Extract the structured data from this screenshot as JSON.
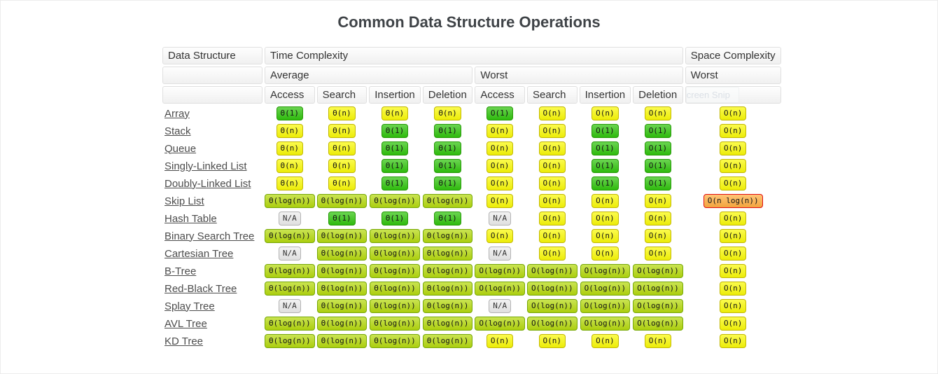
{
  "page": {
    "title": "Common Data Structure Operations"
  },
  "colors": {
    "excellent_bg": "#31c40e",
    "excellent_border": "#259a06",
    "good_bg": "#b5d90f",
    "good_border": "#76a805",
    "fair_bg": "#f9f909",
    "fair_border": "#c2b800",
    "bad_bg": "#ffad41",
    "bad_border": "#e00d0d",
    "na_bg": "#ececec",
    "na_border": "#b3b3b3"
  },
  "table": {
    "headers": {
      "data_structure": "Data Structure",
      "time_complexity": "Time Complexity",
      "space_complexity": "Space Complexity",
      "average": "Average",
      "worst_time": "Worst",
      "worst_space": "Worst",
      "ops": [
        "Access",
        "Search",
        "Insertion",
        "Deletion",
        "Access",
        "Search",
        "Insertion",
        "Deletion"
      ],
      "ghost": "creen Snip"
    },
    "rows": [
      {
        "name": "Array",
        "avg": [
          [
            "Θ(1)",
            "excellent"
          ],
          [
            "Θ(n)",
            "fair"
          ],
          [
            "Θ(n)",
            "fair"
          ],
          [
            "Θ(n)",
            "fair"
          ]
        ],
        "worst": [
          [
            "O(1)",
            "excellent"
          ],
          [
            "O(n)",
            "fair"
          ],
          [
            "O(n)",
            "fair"
          ],
          [
            "O(n)",
            "fair"
          ]
        ],
        "space": [
          "O(n)",
          "fair"
        ]
      },
      {
        "name": "Stack",
        "avg": [
          [
            "Θ(n)",
            "fair"
          ],
          [
            "Θ(n)",
            "fair"
          ],
          [
            "Θ(1)",
            "excellent"
          ],
          [
            "Θ(1)",
            "excellent"
          ]
        ],
        "worst": [
          [
            "O(n)",
            "fair"
          ],
          [
            "O(n)",
            "fair"
          ],
          [
            "O(1)",
            "excellent"
          ],
          [
            "O(1)",
            "excellent"
          ]
        ],
        "space": [
          "O(n)",
          "fair"
        ]
      },
      {
        "name": "Queue",
        "avg": [
          [
            "Θ(n)",
            "fair"
          ],
          [
            "Θ(n)",
            "fair"
          ],
          [
            "Θ(1)",
            "excellent"
          ],
          [
            "Θ(1)",
            "excellent"
          ]
        ],
        "worst": [
          [
            "O(n)",
            "fair"
          ],
          [
            "O(n)",
            "fair"
          ],
          [
            "O(1)",
            "excellent"
          ],
          [
            "O(1)",
            "excellent"
          ]
        ],
        "space": [
          "O(n)",
          "fair"
        ]
      },
      {
        "name": "Singly-Linked List",
        "avg": [
          [
            "Θ(n)",
            "fair"
          ],
          [
            "Θ(n)",
            "fair"
          ],
          [
            "Θ(1)",
            "excellent"
          ],
          [
            "Θ(1)",
            "excellent"
          ]
        ],
        "worst": [
          [
            "O(n)",
            "fair"
          ],
          [
            "O(n)",
            "fair"
          ],
          [
            "O(1)",
            "excellent"
          ],
          [
            "O(1)",
            "excellent"
          ]
        ],
        "space": [
          "O(n)",
          "fair"
        ]
      },
      {
        "name": "Doubly-Linked List",
        "avg": [
          [
            "Θ(n)",
            "fair"
          ],
          [
            "Θ(n)",
            "fair"
          ],
          [
            "Θ(1)",
            "excellent"
          ],
          [
            "Θ(1)",
            "excellent"
          ]
        ],
        "worst": [
          [
            "O(n)",
            "fair"
          ],
          [
            "O(n)",
            "fair"
          ],
          [
            "O(1)",
            "excellent"
          ],
          [
            "O(1)",
            "excellent"
          ]
        ],
        "space": [
          "O(n)",
          "fair"
        ]
      },
      {
        "name": "Skip List",
        "avg": [
          [
            "Θ(log(n))",
            "good"
          ],
          [
            "Θ(log(n))",
            "good"
          ],
          [
            "Θ(log(n))",
            "good"
          ],
          [
            "Θ(log(n))",
            "good"
          ]
        ],
        "worst": [
          [
            "O(n)",
            "fair"
          ],
          [
            "O(n)",
            "fair"
          ],
          [
            "O(n)",
            "fair"
          ],
          [
            "O(n)",
            "fair"
          ]
        ],
        "space": [
          "O(n log(n))",
          "bad"
        ]
      },
      {
        "name": "Hash Table",
        "avg": [
          [
            "N/A",
            "na"
          ],
          [
            "Θ(1)",
            "excellent"
          ],
          [
            "Θ(1)",
            "excellent"
          ],
          [
            "Θ(1)",
            "excellent"
          ]
        ],
        "worst": [
          [
            "N/A",
            "na"
          ],
          [
            "O(n)",
            "fair"
          ],
          [
            "O(n)",
            "fair"
          ],
          [
            "O(n)",
            "fair"
          ]
        ],
        "space": [
          "O(n)",
          "fair"
        ]
      },
      {
        "name": "Binary Search Tree",
        "avg": [
          [
            "Θ(log(n))",
            "good"
          ],
          [
            "Θ(log(n))",
            "good"
          ],
          [
            "Θ(log(n))",
            "good"
          ],
          [
            "Θ(log(n))",
            "good"
          ]
        ],
        "worst": [
          [
            "O(n)",
            "fair"
          ],
          [
            "O(n)",
            "fair"
          ],
          [
            "O(n)",
            "fair"
          ],
          [
            "O(n)",
            "fair"
          ]
        ],
        "space": [
          "O(n)",
          "fair"
        ]
      },
      {
        "name": "Cartesian Tree",
        "avg": [
          [
            "N/A",
            "na"
          ],
          [
            "Θ(log(n))",
            "good"
          ],
          [
            "Θ(log(n))",
            "good"
          ],
          [
            "Θ(log(n))",
            "good"
          ]
        ],
        "worst": [
          [
            "N/A",
            "na"
          ],
          [
            "O(n)",
            "fair"
          ],
          [
            "O(n)",
            "fair"
          ],
          [
            "O(n)",
            "fair"
          ]
        ],
        "space": [
          "O(n)",
          "fair"
        ]
      },
      {
        "name": "B-Tree",
        "avg": [
          [
            "Θ(log(n))",
            "good"
          ],
          [
            "Θ(log(n))",
            "good"
          ],
          [
            "Θ(log(n))",
            "good"
          ],
          [
            "Θ(log(n))",
            "good"
          ]
        ],
        "worst": [
          [
            "O(log(n))",
            "good"
          ],
          [
            "O(log(n))",
            "good"
          ],
          [
            "O(log(n))",
            "good"
          ],
          [
            "O(log(n))",
            "good"
          ]
        ],
        "space": [
          "O(n)",
          "fair"
        ]
      },
      {
        "name": "Red-Black Tree",
        "avg": [
          [
            "Θ(log(n))",
            "good"
          ],
          [
            "Θ(log(n))",
            "good"
          ],
          [
            "Θ(log(n))",
            "good"
          ],
          [
            "Θ(log(n))",
            "good"
          ]
        ],
        "worst": [
          [
            "O(log(n))",
            "good"
          ],
          [
            "O(log(n))",
            "good"
          ],
          [
            "O(log(n))",
            "good"
          ],
          [
            "O(log(n))",
            "good"
          ]
        ],
        "space": [
          "O(n)",
          "fair"
        ]
      },
      {
        "name": "Splay Tree",
        "avg": [
          [
            "N/A",
            "na"
          ],
          [
            "Θ(log(n))",
            "good"
          ],
          [
            "Θ(log(n))",
            "good"
          ],
          [
            "Θ(log(n))",
            "good"
          ]
        ],
        "worst": [
          [
            "N/A",
            "na"
          ],
          [
            "O(log(n))",
            "good"
          ],
          [
            "O(log(n))",
            "good"
          ],
          [
            "O(log(n))",
            "good"
          ]
        ],
        "space": [
          "O(n)",
          "fair"
        ]
      },
      {
        "name": "AVL Tree",
        "avg": [
          [
            "Θ(log(n))",
            "good"
          ],
          [
            "Θ(log(n))",
            "good"
          ],
          [
            "Θ(log(n))",
            "good"
          ],
          [
            "Θ(log(n))",
            "good"
          ]
        ],
        "worst": [
          [
            "O(log(n))",
            "good"
          ],
          [
            "O(log(n))",
            "good"
          ],
          [
            "O(log(n))",
            "good"
          ],
          [
            "O(log(n))",
            "good"
          ]
        ],
        "space": [
          "O(n)",
          "fair"
        ]
      },
      {
        "name": "KD Tree",
        "avg": [
          [
            "Θ(log(n))",
            "good"
          ],
          [
            "Θ(log(n))",
            "good"
          ],
          [
            "Θ(log(n))",
            "good"
          ],
          [
            "Θ(log(n))",
            "good"
          ]
        ],
        "worst": [
          [
            "O(n)",
            "fair"
          ],
          [
            "O(n)",
            "fair"
          ],
          [
            "O(n)",
            "fair"
          ],
          [
            "O(n)",
            "fair"
          ]
        ],
        "space": [
          "O(n)",
          "fair"
        ]
      }
    ]
  }
}
